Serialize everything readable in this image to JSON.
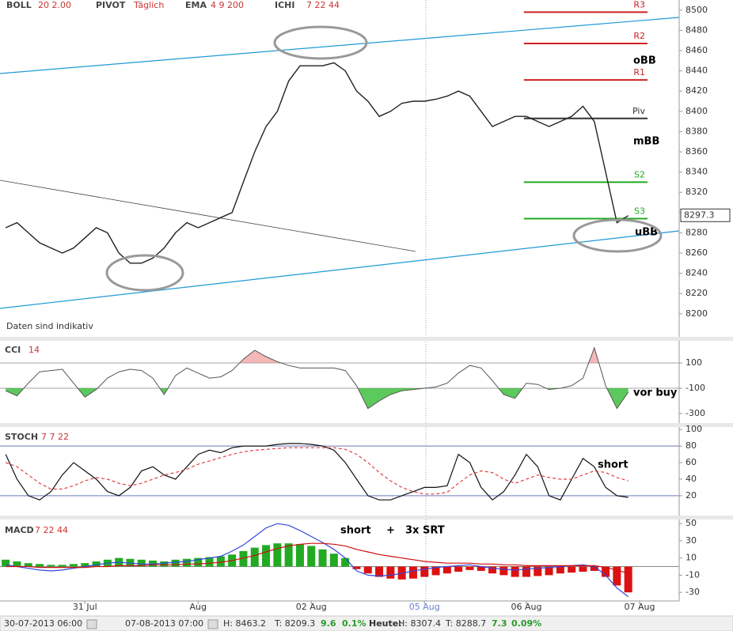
{
  "chart_data": [
    {
      "type": "line",
      "indicators": [
        {
          "name": "BOLL",
          "params": "20  2.00"
        },
        {
          "name": "PIVOT",
          "params": "Täglich"
        },
        {
          "name": "EMA",
          "params": "4  9  200"
        },
        {
          "name": "ICHI",
          "params": "7  22  44"
        }
      ],
      "categories": [
        null,
        null,
        null,
        null,
        null,
        null,
        null,
        "31 Jul",
        null,
        null,
        null,
        null,
        null,
        null,
        null,
        null,
        null,
        "Aug",
        null,
        null,
        null,
        null,
        null,
        null,
        null,
        null,
        null,
        "02 Aug",
        null,
        null,
        null,
        null,
        null,
        null,
        null,
        null,
        null,
        "05 Aug",
        null,
        null,
        null,
        null,
        null,
        null,
        null,
        null,
        "06 Aug",
        null,
        null,
        null,
        null,
        null,
        null,
        null,
        null,
        null,
        "07 Aug",
        null,
        null,
        null
      ],
      "values": [
        8285,
        8290,
        8280,
        8270,
        8265,
        8260,
        8265,
        8275,
        8285,
        8280,
        8260,
        8250,
        8250,
        8255,
        8265,
        8280,
        8290,
        8285,
        8290,
        8295,
        8300,
        8330,
        8360,
        8385,
        8400,
        8430,
        8445,
        8445,
        8445,
        8448,
        8440,
        8420,
        8410,
        8395,
        8400,
        8408,
        8410,
        8410,
        8412,
        8415,
        8420,
        8415,
        8400,
        8385,
        8390,
        8395,
        8395,
        8390,
        8385,
        8390,
        8395,
        8405,
        8390,
        8340,
        8290,
        8297,
        null,
        null,
        null,
        null
      ],
      "color": "#222222",
      "ylim": [
        8178,
        8510
      ],
      "yticks": [
        8200,
        8220,
        8240,
        8260,
        8280,
        8300,
        8320,
        8340,
        8360,
        8380,
        8400,
        8420,
        8440,
        8460,
        8480,
        8500
      ],
      "last_value": 8297.3,
      "pivot_levels": [
        {
          "label": "R3",
          "value": 8498
        },
        {
          "label": "R2",
          "value": 8467
        },
        {
          "label": "R1",
          "value": 8431
        },
        {
          "label": "Piv",
          "value": 8393
        },
        {
          "label": "S2",
          "value": 8330
        },
        {
          "label": "S3",
          "value": 8294
        }
      ],
      "annotations": [
        "oBB",
        "mBB",
        "uBB"
      ],
      "note": "Daten sind indikativ"
    },
    {
      "type": "area",
      "title": "CCI",
      "params": "14",
      "values": [
        -120,
        -160,
        -60,
        30,
        40,
        50,
        -60,
        -170,
        -110,
        -20,
        30,
        50,
        40,
        -20,
        -150,
        0,
        60,
        20,
        -20,
        -10,
        40,
        130,
        200,
        150,
        110,
        80,
        60,
        60,
        60,
        60,
        40,
        -80,
        -260,
        -200,
        -150,
        -120,
        -110,
        -100,
        -90,
        -60,
        20,
        80,
        60,
        -40,
        -150,
        -180,
        -60,
        -70,
        -110,
        -100,
        -80,
        -20,
        220,
        -80,
        -260,
        -130,
        null,
        null,
        null,
        null
      ],
      "ylim": [
        -344,
        269
      ],
      "yticks": [
        100,
        -100,
        -300
      ],
      "levels": [
        100,
        -100
      ],
      "annotations": [
        "vor buy"
      ]
    },
    {
      "type": "line",
      "title": "STOCH",
      "params": "7 7 22",
      "series": [
        {
          "color": "#111111",
          "values": [
            70,
            40,
            20,
            15,
            25,
            45,
            60,
            50,
            40,
            25,
            20,
            30,
            50,
            55,
            45,
            40,
            55,
            70,
            75,
            72,
            78,
            80,
            80,
            80,
            82,
            83,
            83,
            82,
            80,
            75,
            60,
            40,
            20,
            15,
            15,
            20,
            25,
            30,
            30,
            32,
            70,
            60,
            30,
            15,
            25,
            45,
            70,
            55,
            20,
            15,
            40,
            65,
            55,
            30,
            20,
            18,
            null,
            null,
            null,
            null
          ]
        },
        {
          "color": "#e04040",
          "dashed": true,
          "values": [
            60,
            55,
            45,
            35,
            28,
            28,
            32,
            38,
            42,
            40,
            35,
            32,
            35,
            40,
            45,
            48,
            52,
            58,
            62,
            66,
            70,
            73,
            75,
            76,
            77,
            78,
            78,
            78,
            78,
            78,
            76,
            70,
            60,
            48,
            38,
            30,
            25,
            22,
            22,
            24,
            35,
            45,
            50,
            48,
            40,
            35,
            40,
            45,
            42,
            40,
            40,
            45,
            50,
            48,
            42,
            38,
            null,
            null,
            null,
            null
          ]
        }
      ],
      "ylim": [
        -3,
        103
      ],
      "yticks": [
        100,
        80,
        60,
        40,
        20
      ],
      "levels": [
        80,
        20
      ],
      "annotations": [
        "short"
      ]
    },
    {
      "type": "bar",
      "title": "MACD",
      "params": "7  22  44",
      "values": [
        8,
        6,
        4,
        3,
        2,
        2,
        3,
        4,
        6,
        8,
        10,
        9,
        8,
        7,
        6,
        8,
        9,
        10,
        11,
        12,
        14,
        18,
        22,
        25,
        27,
        27,
        26,
        24,
        20,
        15,
        10,
        -3,
        -8,
        -12,
        -14,
        -15,
        -14,
        -12,
        -10,
        -8,
        -6,
        -4,
        -5,
        -8,
        -10,
        -12,
        -12,
        -11,
        -10,
        -8,
        -7,
        -6,
        -5,
        -12,
        -22,
        -30,
        null,
        null,
        null,
        null
      ],
      "colors": [
        "#22aa22",
        "#dd1111"
      ],
      "series": [
        {
          "color": "#3344dd",
          "values": [
            2,
            0,
            -2,
            -4,
            -5,
            -4,
            -2,
            0,
            2,
            4,
            5,
            4,
            3,
            3,
            4,
            5,
            6,
            8,
            10,
            12,
            18,
            25,
            35,
            45,
            50,
            48,
            42,
            35,
            28,
            20,
            10,
            -5,
            -10,
            -11,
            -10,
            -8,
            -5,
            -3,
            -1,
            0,
            1,
            2,
            0,
            -2,
            -3,
            -4,
            -3,
            -2,
            -1,
            0,
            1,
            2,
            0,
            -10,
            -25,
            -35,
            null,
            null,
            null,
            null
          ]
        },
        {
          "color": "#cc1111",
          "values": [
            0,
            0,
            0,
            -1,
            -1,
            -1,
            -1,
            -1,
            0,
            0,
            1,
            1,
            1,
            2,
            2,
            2,
            3,
            3,
            4,
            5,
            7,
            10,
            13,
            17,
            21,
            24,
            26,
            27,
            27,
            26,
            24,
            20,
            17,
            14,
            12,
            10,
            8,
            6,
            5,
            4,
            4,
            4,
            3,
            3,
            2,
            2,
            1,
            1,
            1,
            1,
            1,
            1,
            1,
            -1,
            -4,
            -8,
            null,
            null,
            null,
            null
          ]
        }
      ],
      "ylim": [
        -40,
        52
      ],
      "yticks": [
        50,
        30,
        10,
        -10,
        -30
      ],
      "annotations": [
        "short",
        "+",
        "3x SRT"
      ]
    }
  ],
  "status_bar": {
    "from": "30-07-2013 06:00",
    "to": "07-08-2013 07:00",
    "high": "H: 8463.2",
    "low": "T: 8209.3",
    "change": "9.6",
    "change_pct": "0.1%",
    "today": "Heute:",
    "today_high": "H: 8307.4",
    "today_low": "T: 8288.7",
    "today_change": "7.3",
    "today_change_pct": "0.09%"
  }
}
